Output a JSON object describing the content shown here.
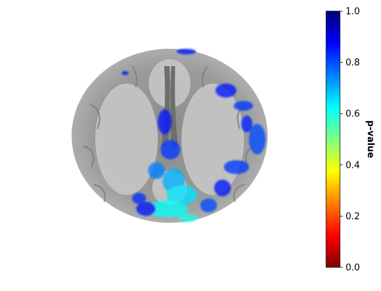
{
  "chart_data": {
    "type": "heatmap",
    "description_type": "statistical overlay on axial brain MRI slice",
    "colormap": "jet_r",
    "colorbar": {
      "label": "p-value",
      "range": [
        0.0,
        1.0
      ],
      "ticks": [
        "0.0",
        "0.2",
        "0.4",
        "0.6",
        "0.8",
        "1.0"
      ],
      "tick_values": [
        0.0,
        0.2,
        0.4,
        0.6,
        0.8,
        1.0
      ],
      "colors": [
        "#7f0000",
        "#ff0000",
        "#ff7f00",
        "#ffff00",
        "#7fff7f",
        "#00ffff",
        "#007fff",
        "#0000ff",
        "#00007f"
      ]
    },
    "overlay_blobs": [
      {
        "p": 0.85
      },
      {
        "p": 0.85
      },
      {
        "p": 0.85
      },
      {
        "p": 0.82
      },
      {
        "p": 0.8
      },
      {
        "p": 0.85
      },
      {
        "p": 0.82
      },
      {
        "p": 0.75
      },
      {
        "p": 0.7
      },
      {
        "p": 0.65
      },
      {
        "p": 0.62
      },
      {
        "p": 0.6
      },
      {
        "p": 0.85
      },
      {
        "p": 0.82
      },
      {
        "p": 0.85
      },
      {
        "p": 0.83
      },
      {
        "p": 0.8
      },
      {
        "p": 0.84
      }
    ],
    "axes_visible": false,
    "grid": false
  }
}
